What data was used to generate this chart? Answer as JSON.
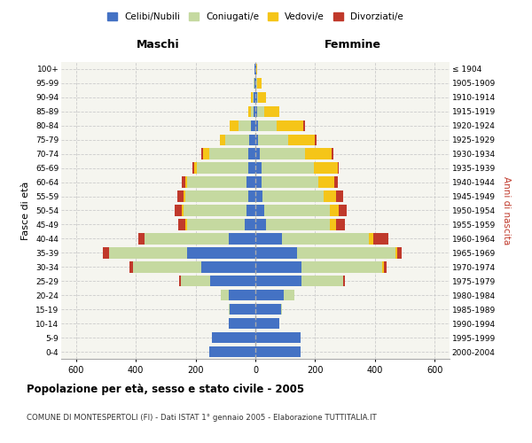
{
  "age_groups": [
    "0-4",
    "5-9",
    "10-14",
    "15-19",
    "20-24",
    "25-29",
    "30-34",
    "35-39",
    "40-44",
    "45-49",
    "50-54",
    "55-59",
    "60-64",
    "65-69",
    "70-74",
    "75-79",
    "80-84",
    "85-89",
    "90-94",
    "95-99",
    "100+"
  ],
  "birth_years": [
    "2000-2004",
    "1995-1999",
    "1990-1994",
    "1985-1989",
    "1980-1984",
    "1975-1979",
    "1970-1974",
    "1965-1969",
    "1960-1964",
    "1955-1959",
    "1950-1954",
    "1945-1949",
    "1940-1944",
    "1935-1939",
    "1930-1934",
    "1925-1929",
    "1920-1924",
    "1915-1919",
    "1910-1914",
    "1905-1909",
    "≤ 1904"
  ],
  "maschi": {
    "celibi": [
      155,
      145,
      90,
      85,
      90,
      150,
      180,
      230,
      90,
      35,
      30,
      25,
      30,
      25,
      25,
      20,
      15,
      5,
      5,
      3,
      2
    ],
    "coniugati": [
      0,
      0,
      0,
      5,
      25,
      100,
      230,
      260,
      280,
      195,
      210,
      210,
      200,
      170,
      130,
      80,
      40,
      10,
      5,
      2,
      0
    ],
    "vedovi": [
      0,
      0,
      0,
      0,
      0,
      0,
      0,
      0,
      2,
      3,
      5,
      5,
      5,
      10,
      20,
      20,
      30,
      10,
      5,
      2,
      0
    ],
    "divorziati": [
      0,
      0,
      0,
      0,
      0,
      5,
      10,
      20,
      20,
      25,
      25,
      20,
      10,
      5,
      5,
      0,
      0,
      0,
      0,
      0,
      0
    ]
  },
  "femmine": {
    "nubili": [
      150,
      150,
      80,
      85,
      95,
      155,
      155,
      140,
      90,
      35,
      30,
      25,
      20,
      20,
      15,
      10,
      10,
      5,
      5,
      3,
      2
    ],
    "coniugate": [
      0,
      0,
      0,
      5,
      35,
      140,
      270,
      330,
      290,
      215,
      220,
      205,
      190,
      175,
      150,
      100,
      60,
      25,
      5,
      2,
      0
    ],
    "vedove": [
      0,
      0,
      0,
      0,
      0,
      0,
      5,
      5,
      15,
      20,
      30,
      40,
      55,
      80,
      90,
      90,
      90,
      50,
      25,
      15,
      5
    ],
    "divorziate": [
      0,
      0,
      0,
      0,
      0,
      5,
      10,
      15,
      50,
      30,
      25,
      25,
      10,
      5,
      5,
      5,
      5,
      0,
      0,
      0,
      0
    ]
  },
  "colors": {
    "celibi": "#4472c4",
    "coniugati": "#c5d9a0",
    "vedovi": "#f5c518",
    "divorziati": "#c0392b"
  },
  "xlim": 650,
  "xticks": [
    -600,
    -400,
    -200,
    0,
    200,
    400,
    600
  ],
  "title": "Popolazione per età, sesso e stato civile - 2005",
  "subtitle": "COMUNE DI MONTESPERTOLI (FI) - Dati ISTAT 1° gennaio 2005 - Elaborazione TUTTITALIA.IT",
  "ylabel_left": "Fasce di età",
  "ylabel_right": "Anni di nascita",
  "xlabel_left": "Maschi",
  "xlabel_right": "Femmine",
  "bg_color": "#f5f5ef",
  "legend": [
    "Celibi/Nubili",
    "Coniugati/e",
    "Vedovi/e",
    "Divorziati/e"
  ]
}
